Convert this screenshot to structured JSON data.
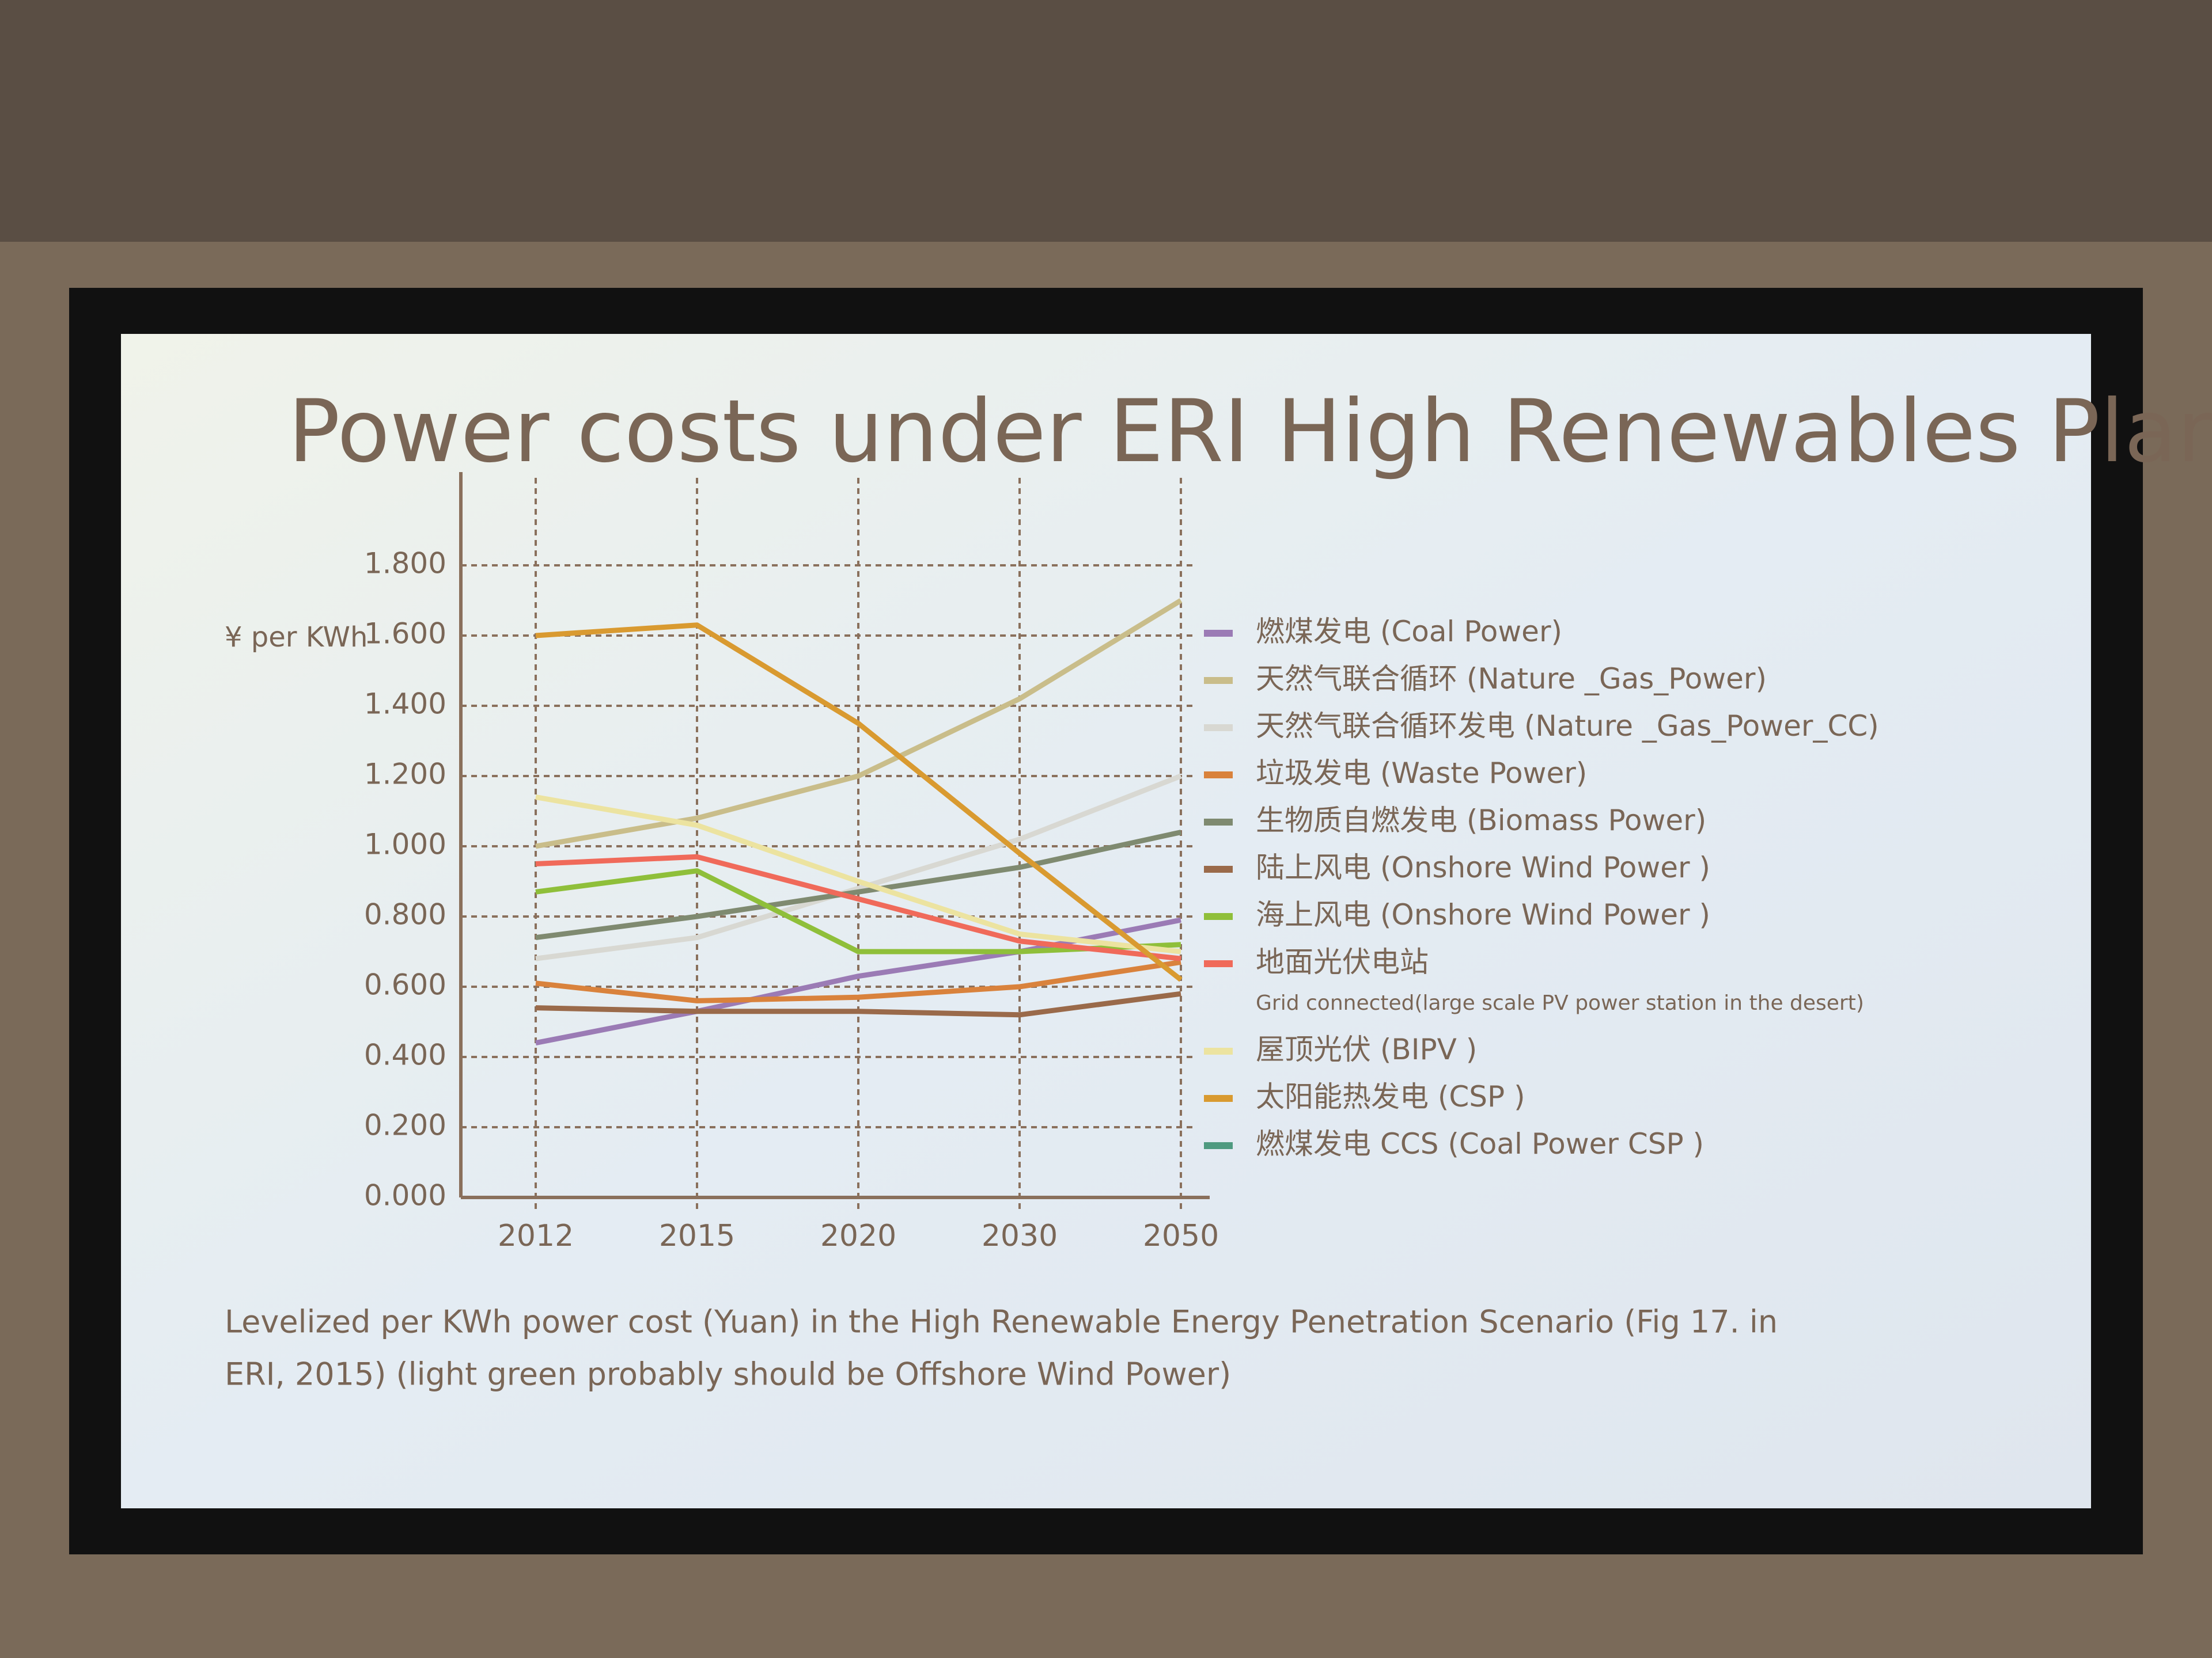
{
  "chart_data": {
    "type": "line",
    "title": "Power costs under ERI High Renewables Plan",
    "y_label": "¥ per KWh",
    "caption": [
      "Levelized per KWh power cost  (Yuan) in the High Renewable Energy Penetration Scenario (Fig 17. in",
      "ERI, 2015)  (light green probably should be Offshore Wind Power)"
    ],
    "categories": [
      "2012",
      "2015",
      "2020",
      "2030",
      "2050"
    ],
    "ylim": [
      0,
      2.0
    ],
    "yticks": [
      {
        "value": 0,
        "label": "0.000"
      },
      {
        "value": 0.2,
        "label": "0.200"
      },
      {
        "value": 0.4,
        "label": "0.400"
      },
      {
        "value": 0.6,
        "label": "0.600"
      },
      {
        "value": 0.8,
        "label": "0.800"
      },
      {
        "value": 1.0,
        "label": "1.000"
      },
      {
        "value": 1.2,
        "label": "1.200"
      },
      {
        "value": 1.4,
        "label": "1.400"
      },
      {
        "value": 1.6,
        "label": "1.600"
      },
      {
        "value": 1.8,
        "label": "1.800"
      }
    ],
    "grid": true,
    "series": [
      {
        "name": "燃煤发电  (Coal Power)",
        "color": "#9b7bb5",
        "values": [
          0.44,
          0.53,
          0.63,
          0.7,
          0.79
        ]
      },
      {
        "name": "天然气联合循环 (Nature _Gas_Power)",
        "color": "#c9bd8a",
        "values": [
          1.0,
          1.08,
          1.2,
          1.42,
          1.7
        ]
      },
      {
        "name": "天然气联合循环发电 (Nature _Gas_Power_CC)",
        "color": "#d8d8d2",
        "values": [
          0.68,
          0.74,
          0.88,
          1.02,
          1.2
        ]
      },
      {
        "name": "垃圾发电 (Waste Power)",
        "color": "#d9823c",
        "values": [
          0.61,
          0.56,
          0.57,
          0.6,
          0.67
        ]
      },
      {
        "name": "生物质自燃发电 (Biomass Power)",
        "color": "#7f8a70",
        "values": [
          0.74,
          0.8,
          0.87,
          0.94,
          1.04
        ]
      },
      {
        "name": "陆上风电 (Onshore Wind Power )",
        "color": "#9a6a4a",
        "values": [
          0.54,
          0.53,
          0.53,
          0.52,
          0.58
        ]
      },
      {
        "name": "海上风电 (Onshore Wind Power )",
        "color": "#8fbf3a",
        "values": [
          0.87,
          0.93,
          0.7,
          0.7,
          0.72
        ]
      },
      {
        "name": "地面光伏电站\nGrid connected(large scale PV power station in the desert)",
        "color": "#f06a5a",
        "values": [
          0.95,
          0.97,
          0.85,
          0.73,
          0.68
        ]
      },
      {
        "name": "屋顶光伏 (BIPV )",
        "color": "#ece3a0",
        "values": [
          1.14,
          1.06,
          0.9,
          0.75,
          0.7
        ]
      },
      {
        "name": "太阳能热发电 (CSP )",
        "color": "#d99a30",
        "values": [
          1.6,
          1.63,
          1.35,
          0.98,
          0.62
        ]
      },
      {
        "name": "燃煤发电 CCS (Coal Power CSP )",
        "color": "#4f9a80",
        "values": [
          null,
          null,
          null,
          null,
          null
        ]
      }
    ]
  }
}
